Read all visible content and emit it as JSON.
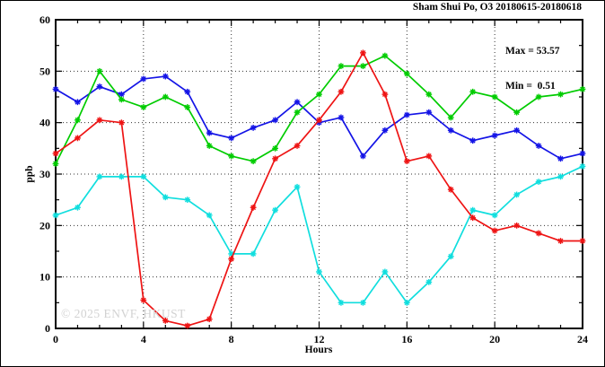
{
  "title": "Sham Shui Po, O3 20180615-20180618",
  "annotation": {
    "max_line": "Max = 53.57",
    "min_line": "Min =  0.51"
  },
  "watermark": "© 2025 ENVF, HKUST",
  "chart_data": {
    "type": "line",
    "title": "Sham Shui Po, O3 20180615-20180618",
    "xlabel": "Hours",
    "ylabel": "ppb",
    "xlim": [
      0,
      24
    ],
    "ylim": [
      0,
      60
    ],
    "xticks_major": [
      0,
      4,
      8,
      12,
      16,
      20,
      24
    ],
    "xticks_minor_interval": 1,
    "yticks_major": [
      0,
      10,
      20,
      30,
      40,
      50,
      60
    ],
    "yticks_minor_interval": 5,
    "grid": "dotted-at-major-ticks",
    "legend": "none",
    "stat_max": 53.57,
    "stat_min": 0.51,
    "axis_color": "#000000",
    "grid_color": "#333333",
    "marker": "asterisk",
    "x": [
      0,
      1,
      2,
      3,
      4,
      5,
      6,
      7,
      8,
      9,
      10,
      11,
      12,
      13,
      14,
      15,
      16,
      17,
      18,
      19,
      20,
      21,
      22,
      23,
      24
    ],
    "series": [
      {
        "name": "series-blue",
        "color": "#1414e6",
        "values": [
          46.5,
          44,
          47,
          45.5,
          48.5,
          49,
          46,
          38,
          37,
          39,
          40.5,
          44,
          40,
          41,
          33.5,
          38.5,
          41.5,
          42,
          38.5,
          36.5,
          37.5,
          38.5,
          35.5,
          33,
          34
        ]
      },
      {
        "name": "series-cyan",
        "color": "#10dede",
        "values": [
          22,
          23.5,
          29.5,
          29.5,
          29.5,
          25.5,
          25,
          22,
          14.5,
          14.5,
          23,
          27.5,
          11,
          5,
          5,
          11,
          5,
          9,
          14,
          23,
          22,
          26,
          28.5,
          29.5,
          31.5
        ]
      },
      {
        "name": "series-green",
        "color": "#00cc00",
        "values": [
          32,
          40.5,
          50,
          44.5,
          43,
          45,
          43,
          35.5,
          33.5,
          32.5,
          35,
          42,
          45.5,
          51,
          51,
          53,
          49.5,
          45.5,
          41,
          46,
          45,
          42,
          45,
          45.5,
          46.5
        ]
      },
      {
        "name": "series-red",
        "color": "#ee1414",
        "values": [
          34,
          37,
          40.5,
          40,
          5.5,
          1.5,
          0.51,
          1.8,
          13.5,
          23.5,
          33,
          35.5,
          40.5,
          46,
          53.57,
          45.5,
          32.5,
          33.5,
          27,
          21.5,
          19,
          20,
          18.5,
          17,
          17
        ]
      }
    ]
  }
}
